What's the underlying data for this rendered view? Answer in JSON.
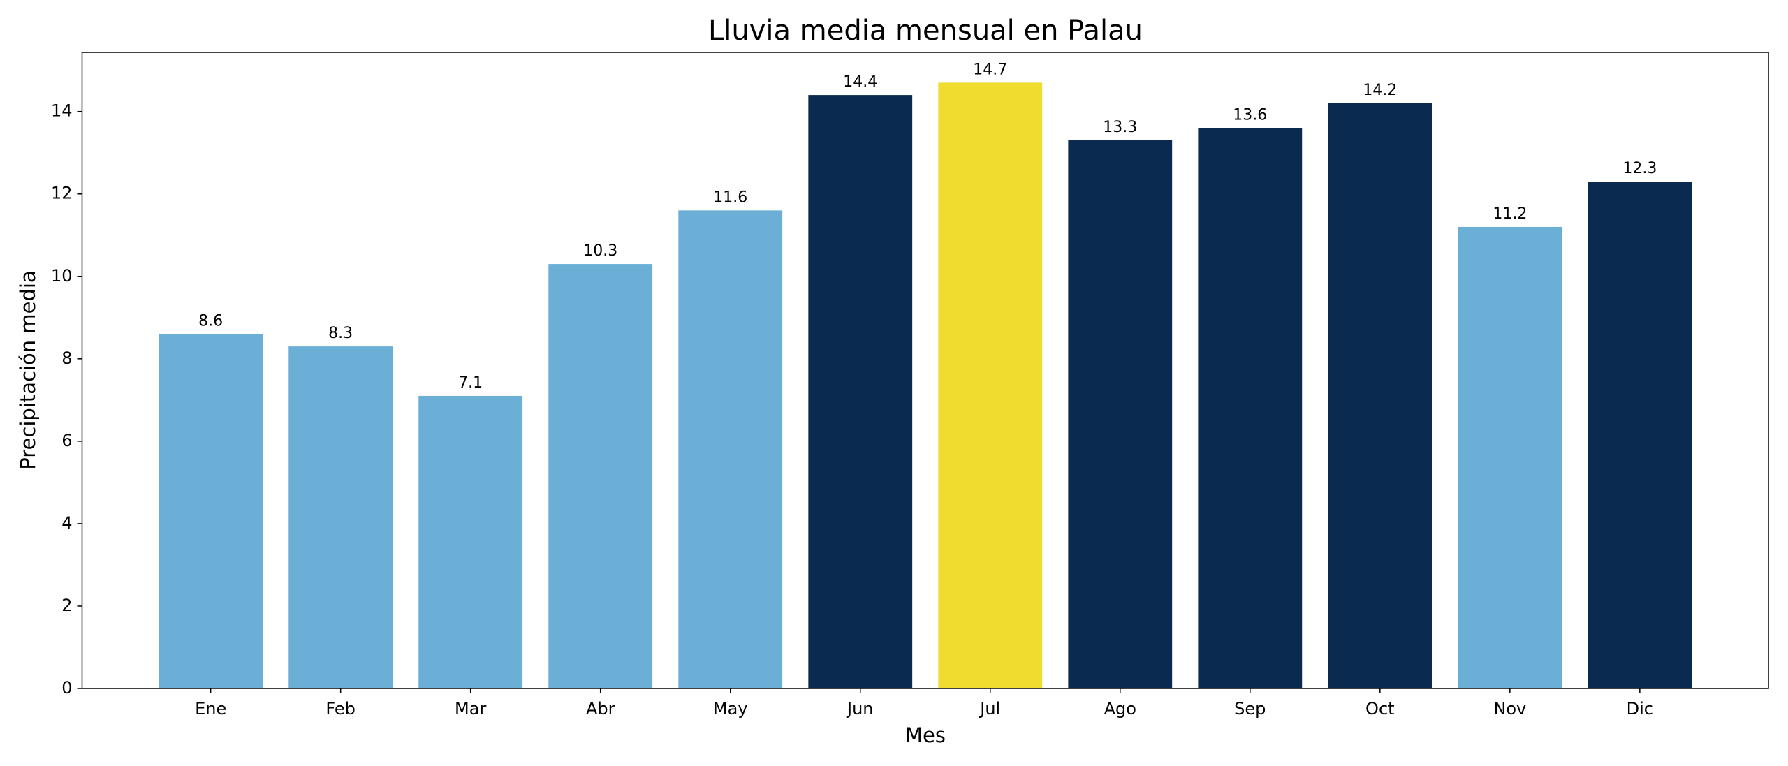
{
  "chart_data": {
    "type": "bar",
    "title": "Lluvia media mensual en Palau",
    "xlabel": "Mes",
    "ylabel": "Precipitación media",
    "categories": [
      "Ene",
      "Feb",
      "Mar",
      "Abr",
      "May",
      "Jun",
      "Jul",
      "Ago",
      "Sep",
      "Oct",
      "Nov",
      "Dic"
    ],
    "values": [
      8.6,
      8.3,
      7.1,
      10.3,
      11.6,
      14.4,
      14.7,
      13.3,
      13.6,
      14.2,
      11.2,
      12.3
    ],
    "colors": [
      "#6baed6",
      "#6baed6",
      "#6baed6",
      "#6baed6",
      "#6baed6",
      "#0b2a4f",
      "#f0dc2f",
      "#0b2a4f",
      "#0b2a4f",
      "#0b2a4f",
      "#6baed6",
      "#0b2a4f"
    ],
    "ylim": [
      0,
      15.435
    ],
    "yticks": [
      0,
      2,
      4,
      6,
      8,
      10,
      12,
      14
    ],
    "grid": false
  }
}
